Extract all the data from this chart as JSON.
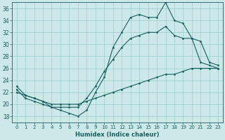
{
  "xlabel": "Humidex (Indice chaleur)",
  "background_color": "#cce8e8",
  "grid_color": "#99cccc",
  "line_color": "#1a6060",
  "xlim": [
    -0.5,
    23.5
  ],
  "ylim": [
    17,
    37
  ],
  "xticks": [
    0,
    1,
    2,
    3,
    4,
    5,
    6,
    7,
    8,
    9,
    10,
    11,
    12,
    13,
    14,
    15,
    16,
    17,
    18,
    19,
    20,
    21,
    22,
    23
  ],
  "yticks": [
    18,
    20,
    22,
    24,
    26,
    28,
    30,
    32,
    34,
    36
  ],
  "series1": [
    23,
    21.5,
    21,
    20.5,
    19.5,
    19,
    18.5,
    18,
    19,
    22,
    24.5,
    29.5,
    32,
    34.5,
    35,
    34.5,
    34.5,
    37,
    34,
    33.5,
    31,
    30.5,
    27,
    26.5
  ],
  "series2": [
    22.5,
    21,
    20.5,
    20,
    19.5,
    19.5,
    19.5,
    19.5,
    21,
    23,
    25.5,
    27.5,
    29.5,
    31,
    31.5,
    32,
    32,
    33,
    31.5,
    31,
    31,
    27,
    26.5,
    26
  ],
  "series3": [
    22,
    21.5,
    21,
    20.5,
    20,
    20,
    20,
    20,
    20.5,
    21,
    21.5,
    22,
    22.5,
    23,
    23.5,
    24,
    24.5,
    25,
    25,
    25.5,
    26,
    26,
    26,
    26
  ]
}
